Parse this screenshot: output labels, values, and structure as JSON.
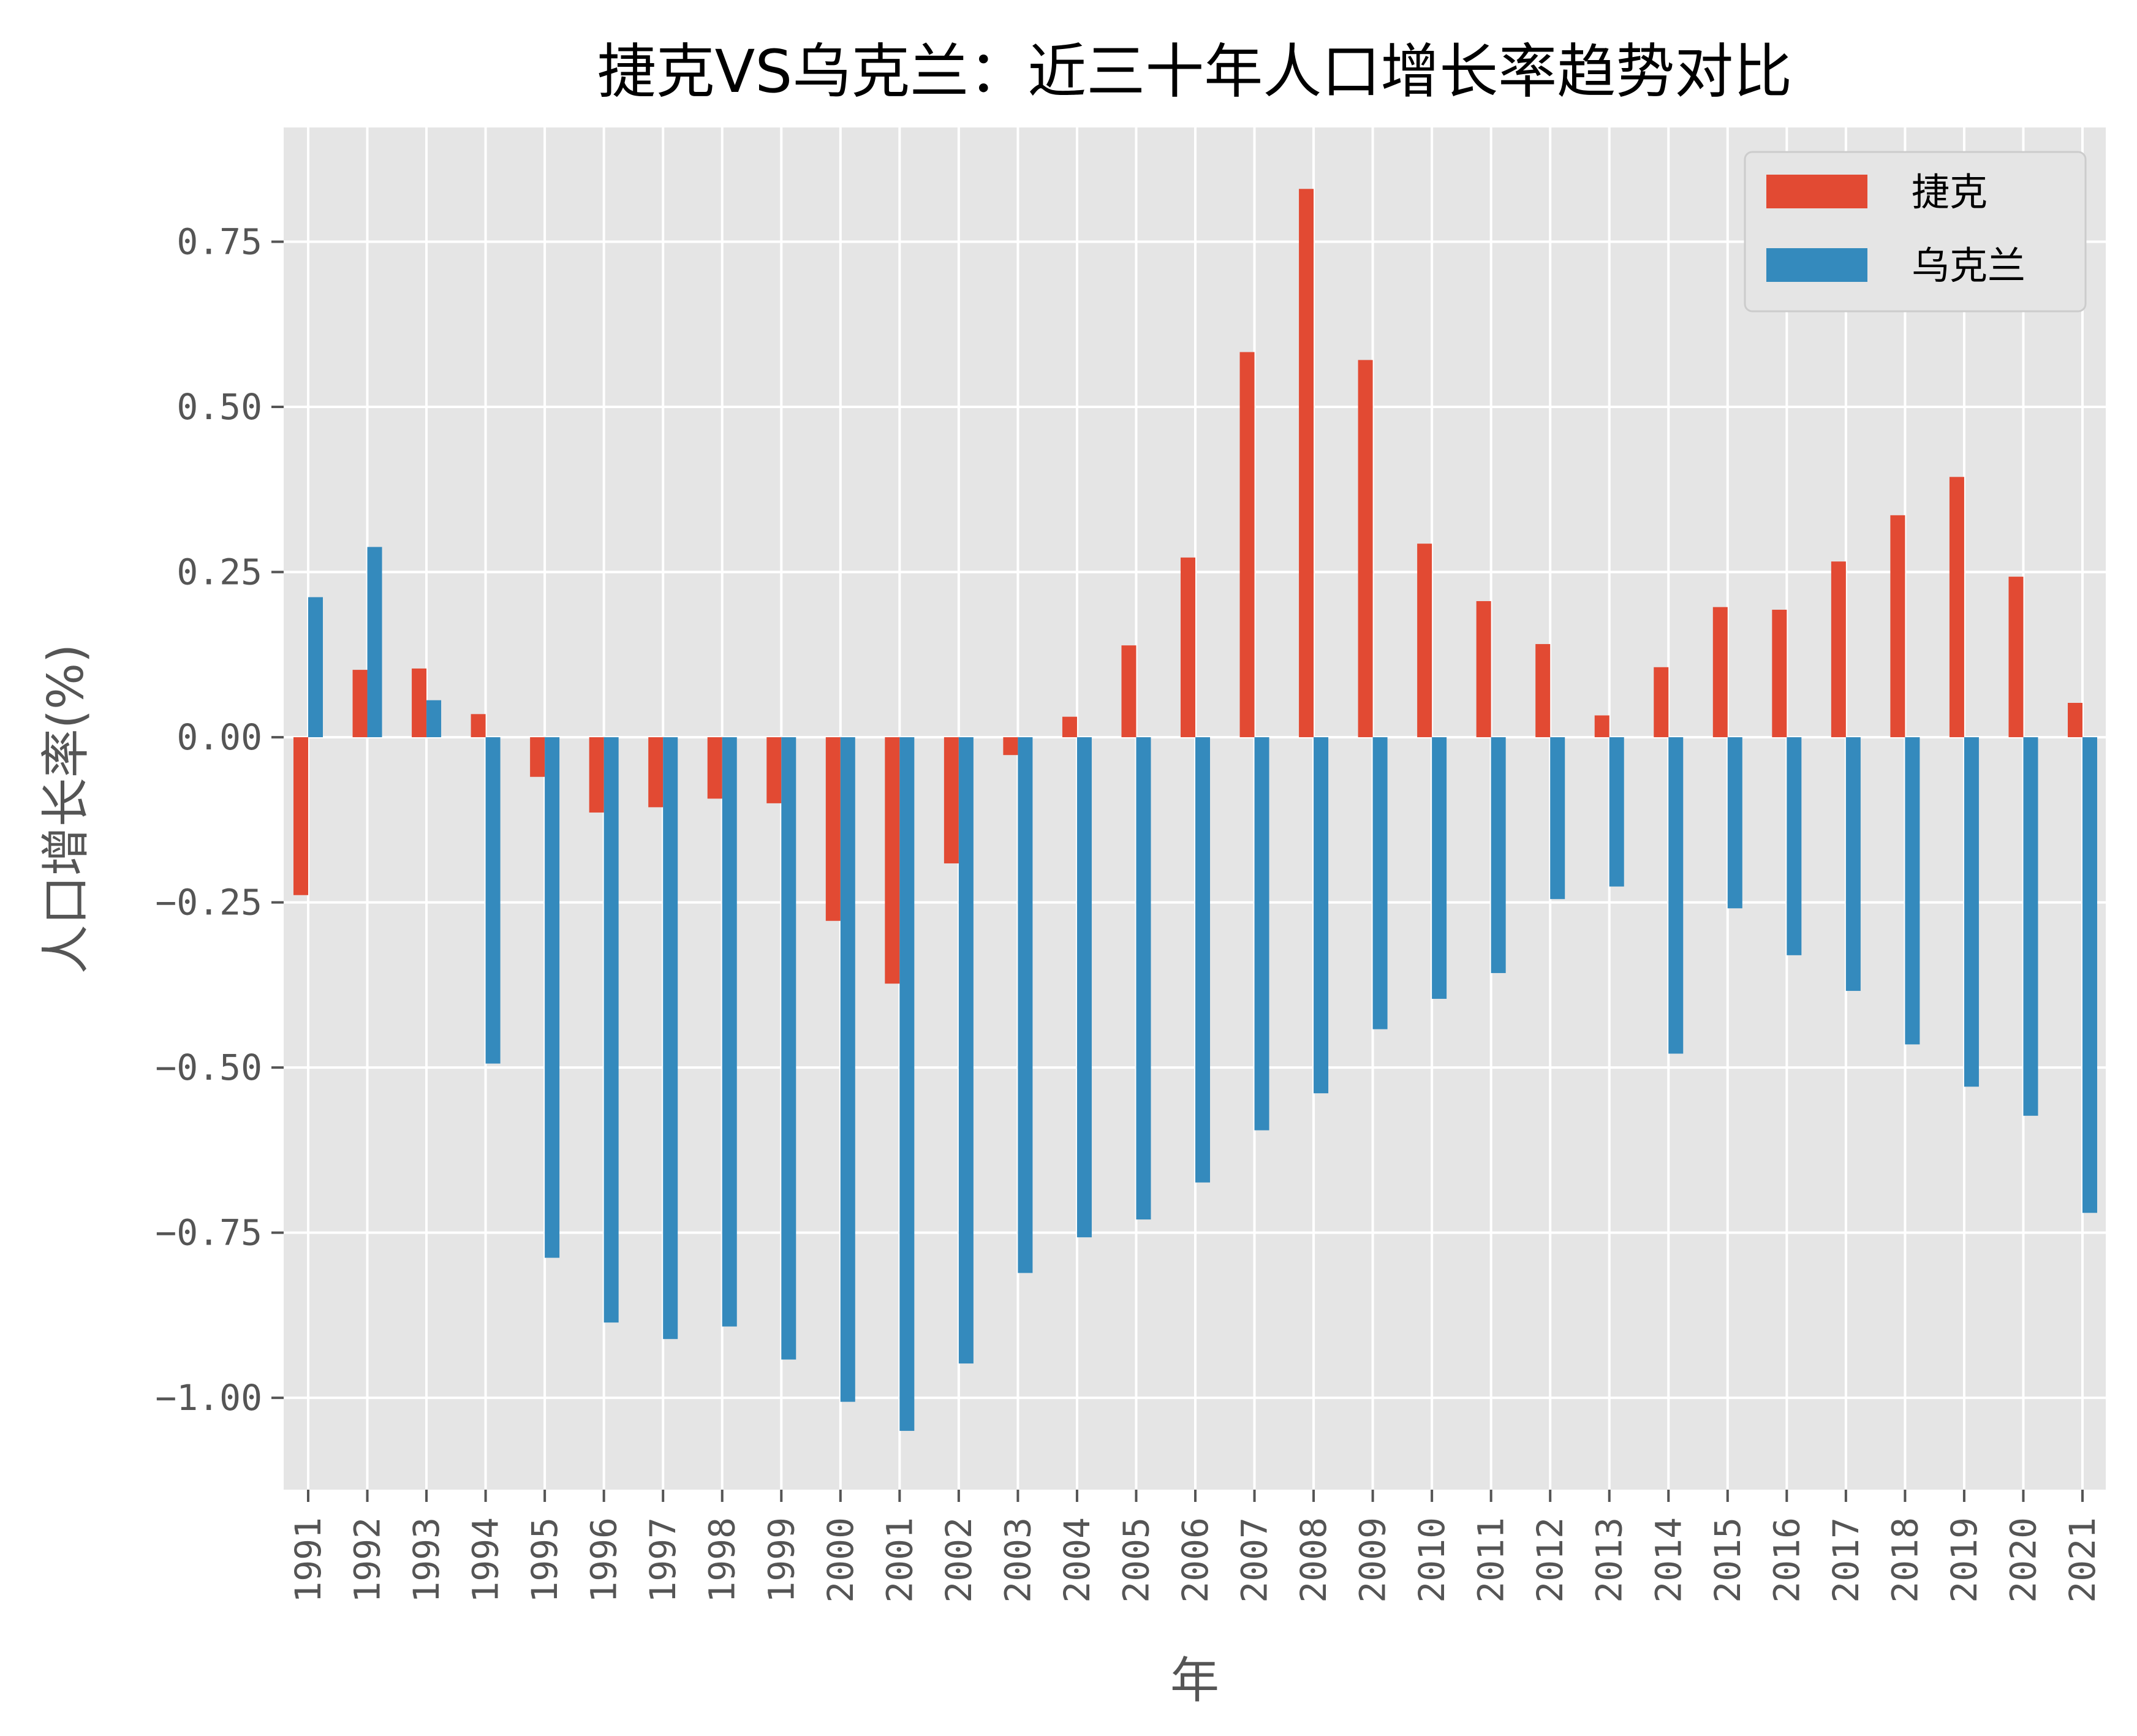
{
  "chart_data": {
    "type": "bar",
    "title": "捷克VS乌克兰：近三十年人口增长率趋势对比",
    "xlabel": "年",
    "ylabel": "人口增长率(%)",
    "ylim": [
      -1.139,
      0.923
    ],
    "yticks": [
      -1.0,
      -0.75,
      -0.5,
      -0.25,
      0.0,
      0.25,
      0.5,
      0.75
    ],
    "ytick_labels": [
      "−1.00",
      "−0.75",
      "−0.50",
      "−0.25",
      "0.00",
      "0.25",
      "0.50",
      "0.75"
    ],
    "grid": true,
    "legend_position": "top-right",
    "background": "#E5E5E5",
    "categories": [
      "1991",
      "1992",
      "1993",
      "1994",
      "1995",
      "1996",
      "1997",
      "1998",
      "1999",
      "2000",
      "2001",
      "2002",
      "2003",
      "2004",
      "2005",
      "2006",
      "2007",
      "2008",
      "2009",
      "2010",
      "2011",
      "2012",
      "2013",
      "2014",
      "2015",
      "2016",
      "2017",
      "2018",
      "2019",
      "2020",
      "2021"
    ],
    "series": [
      {
        "name": "捷克",
        "color": "#E24A33",
        "values": [
          -0.239,
          0.102,
          0.104,
          0.035,
          -0.06,
          -0.114,
          -0.106,
          -0.093,
          -0.1,
          -0.278,
          -0.373,
          -0.191,
          -0.027,
          0.031,
          0.139,
          0.272,
          0.583,
          0.83,
          0.571,
          0.293,
          0.206,
          0.141,
          0.033,
          0.106,
          0.197,
          0.193,
          0.266,
          0.336,
          0.394,
          0.243,
          0.052
        ]
      },
      {
        "name": "乌克兰",
        "color": "#348ABD",
        "values": [
          0.212,
          0.288,
          0.056,
          -0.494,
          -0.788,
          -0.886,
          -0.911,
          -0.892,
          -0.942,
          -1.006,
          -1.05,
          -0.948,
          -0.811,
          -0.757,
          -0.73,
          -0.674,
          -0.595,
          -0.539,
          -0.442,
          -0.396,
          -0.357,
          -0.245,
          -0.226,
          -0.479,
          -0.259,
          -0.33,
          -0.384,
          -0.465,
          -0.529,
          -0.573,
          -0.72
        ]
      }
    ]
  }
}
